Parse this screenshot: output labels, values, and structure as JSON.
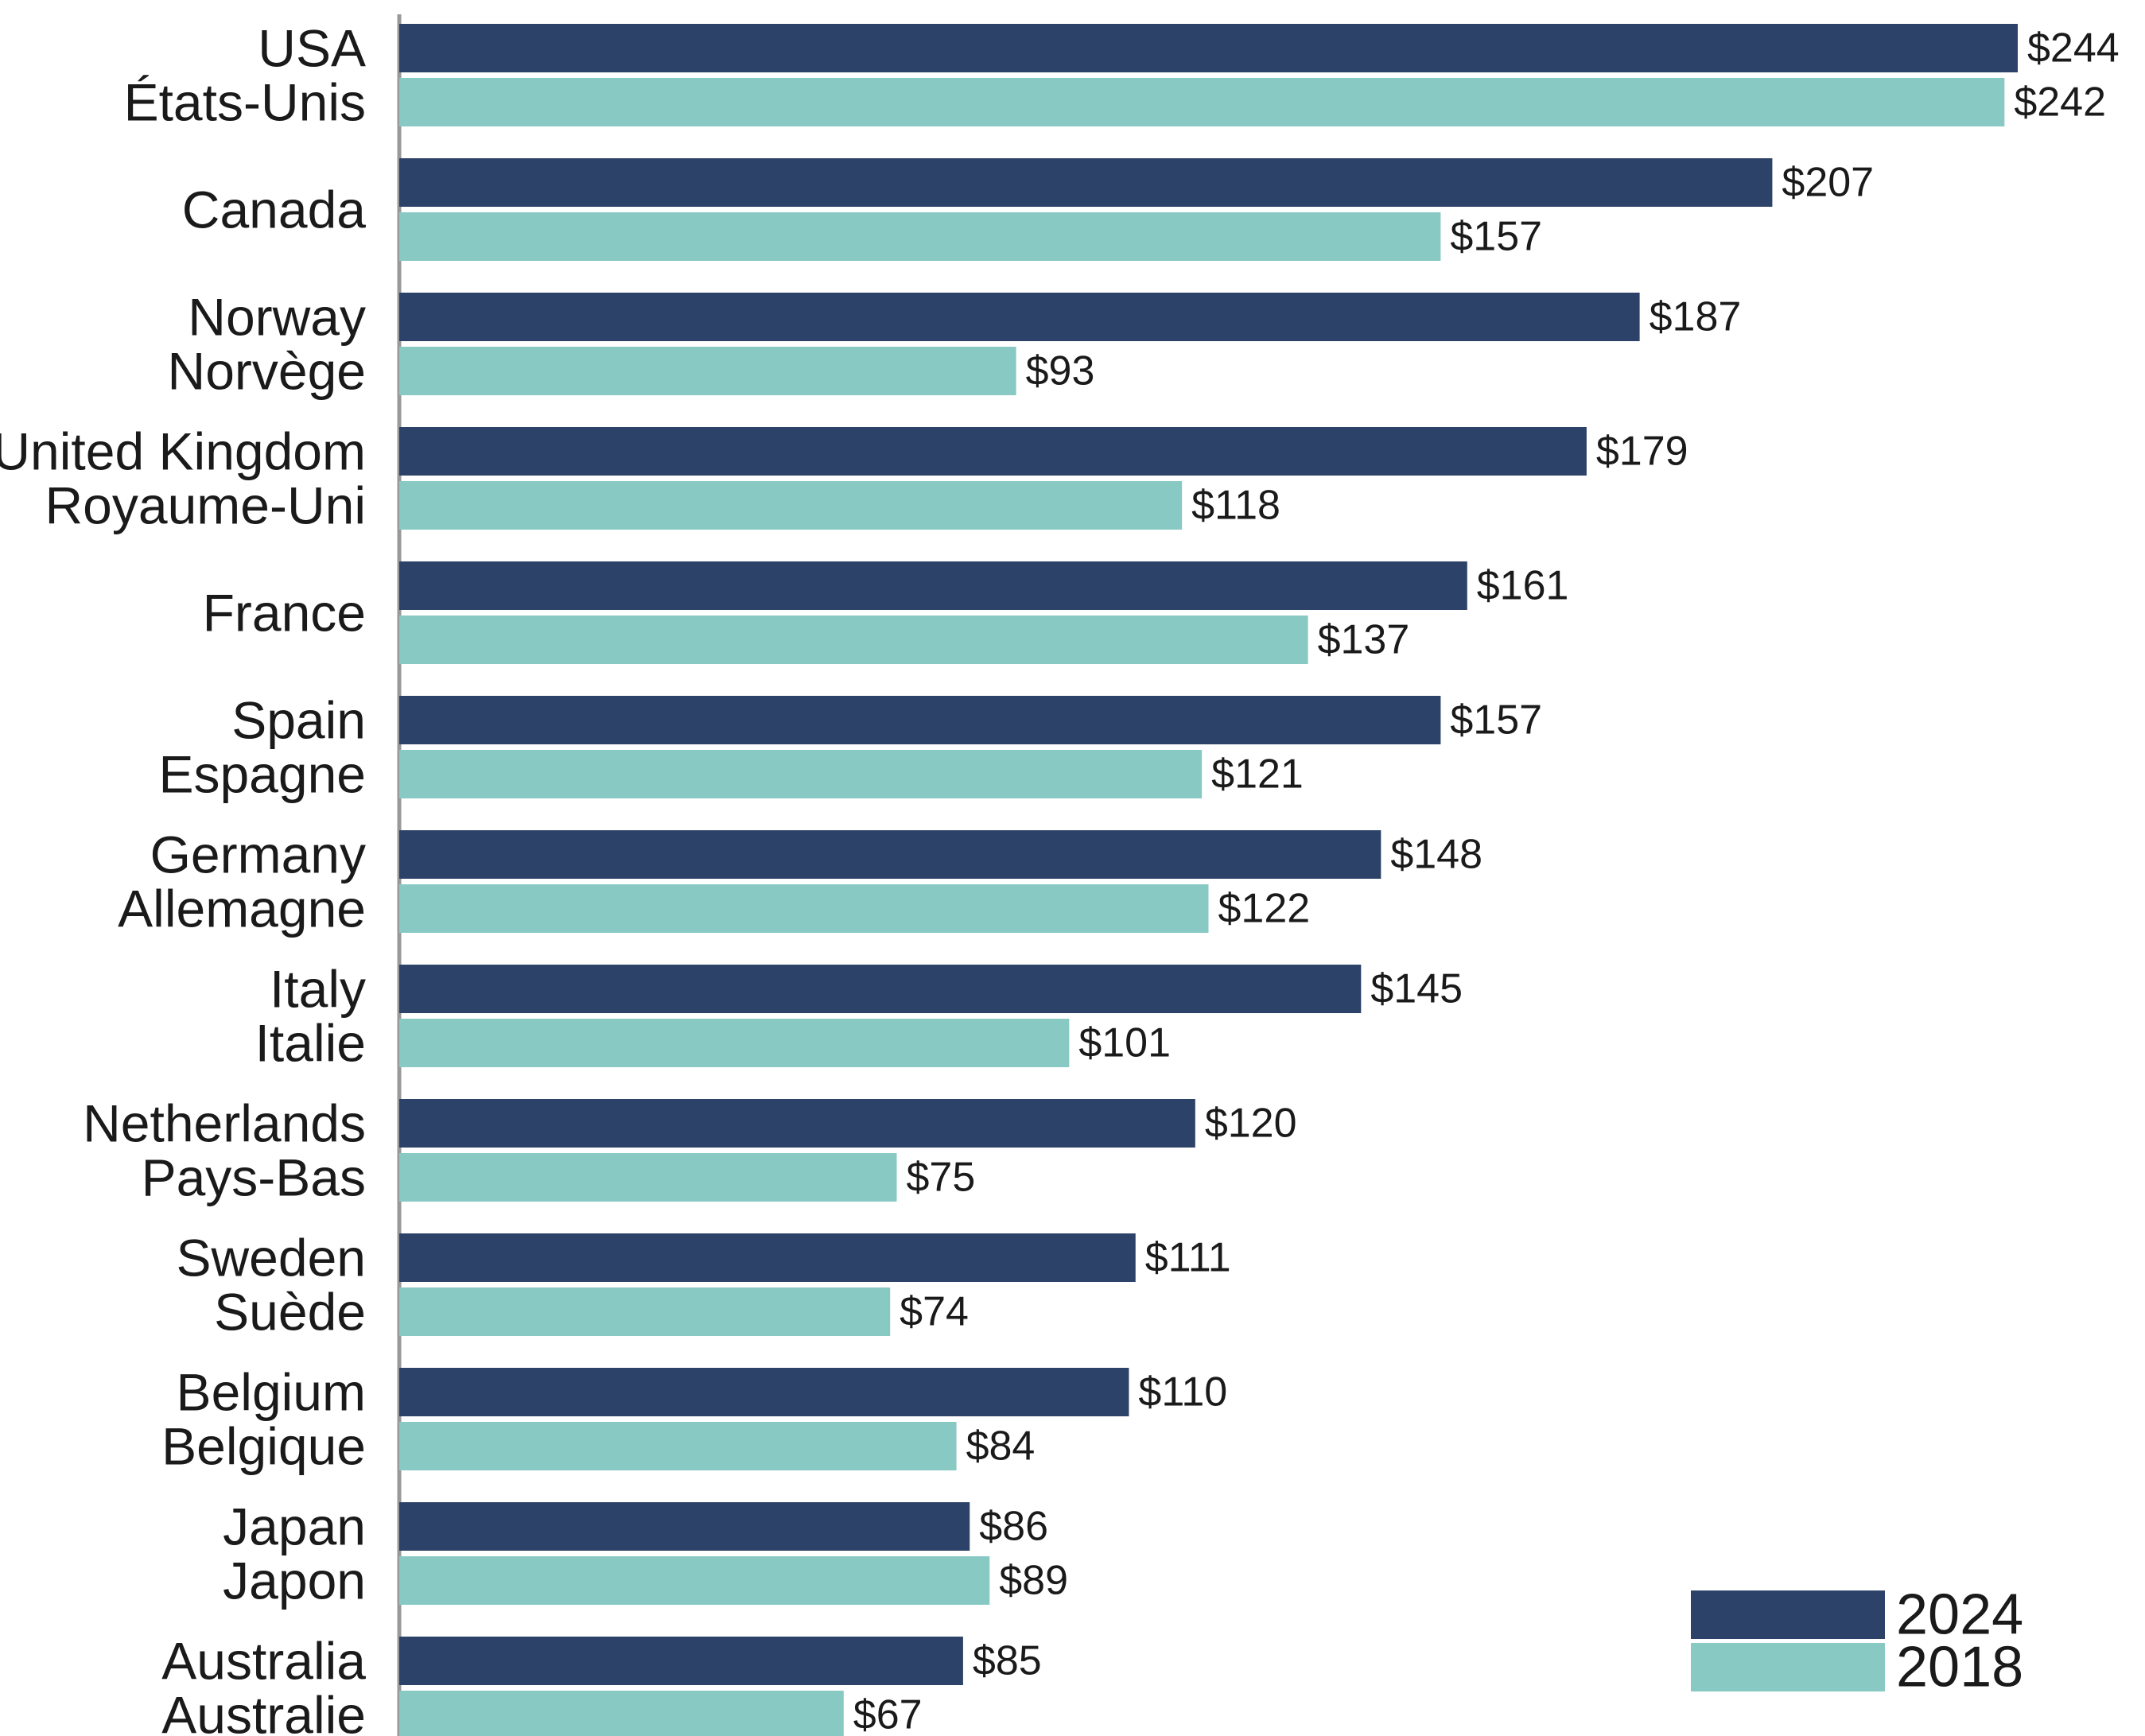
{
  "chart_data": {
    "type": "bar",
    "orientation": "horizontal",
    "categories": [
      [
        "USA",
        "États-Unis"
      ],
      [
        "Canada"
      ],
      [
        "Norway",
        "Norvège"
      ],
      [
        "United Kingdom",
        "Royaume-Uni"
      ],
      [
        "France"
      ],
      [
        "Spain",
        "Espagne"
      ],
      [
        "Germany",
        "Allemagne"
      ],
      [
        "Italy",
        "Italie"
      ],
      [
        "Netherlands",
        "Pays-Bas"
      ],
      [
        "Sweden",
        "Suède"
      ],
      [
        "Belgium",
        "Belgique"
      ],
      [
        "Japan",
        "Japon"
      ],
      [
        "Australia",
        "Australie"
      ]
    ],
    "series": [
      {
        "name": "2024",
        "color": "#2c4268",
        "values": [
          244,
          207,
          187,
          179,
          161,
          157,
          148,
          145,
          120,
          111,
          110,
          86,
          85
        ],
        "labels": [
          "$244",
          "$207",
          "$187",
          "$179",
          "$161",
          "$157",
          "$148",
          "$145",
          "$120",
          "$111",
          "$110",
          "$86",
          "$85"
        ]
      },
      {
        "name": "2018",
        "color": "#88c9c4",
        "values": [
          242,
          157,
          93,
          118,
          137,
          121,
          122,
          101,
          75,
          74,
          84,
          89,
          67
        ],
        "labels": [
          "$242",
          "$157",
          "$93",
          "$118",
          "$137",
          "$121",
          "$122",
          "$101",
          "$75",
          "$74",
          "$84",
          "$89",
          "$67"
        ]
      }
    ],
    "xlim": [
      0,
      244
    ],
    "grid": false,
    "legend_position": "bottom-right",
    "axis_color": "#999999"
  }
}
